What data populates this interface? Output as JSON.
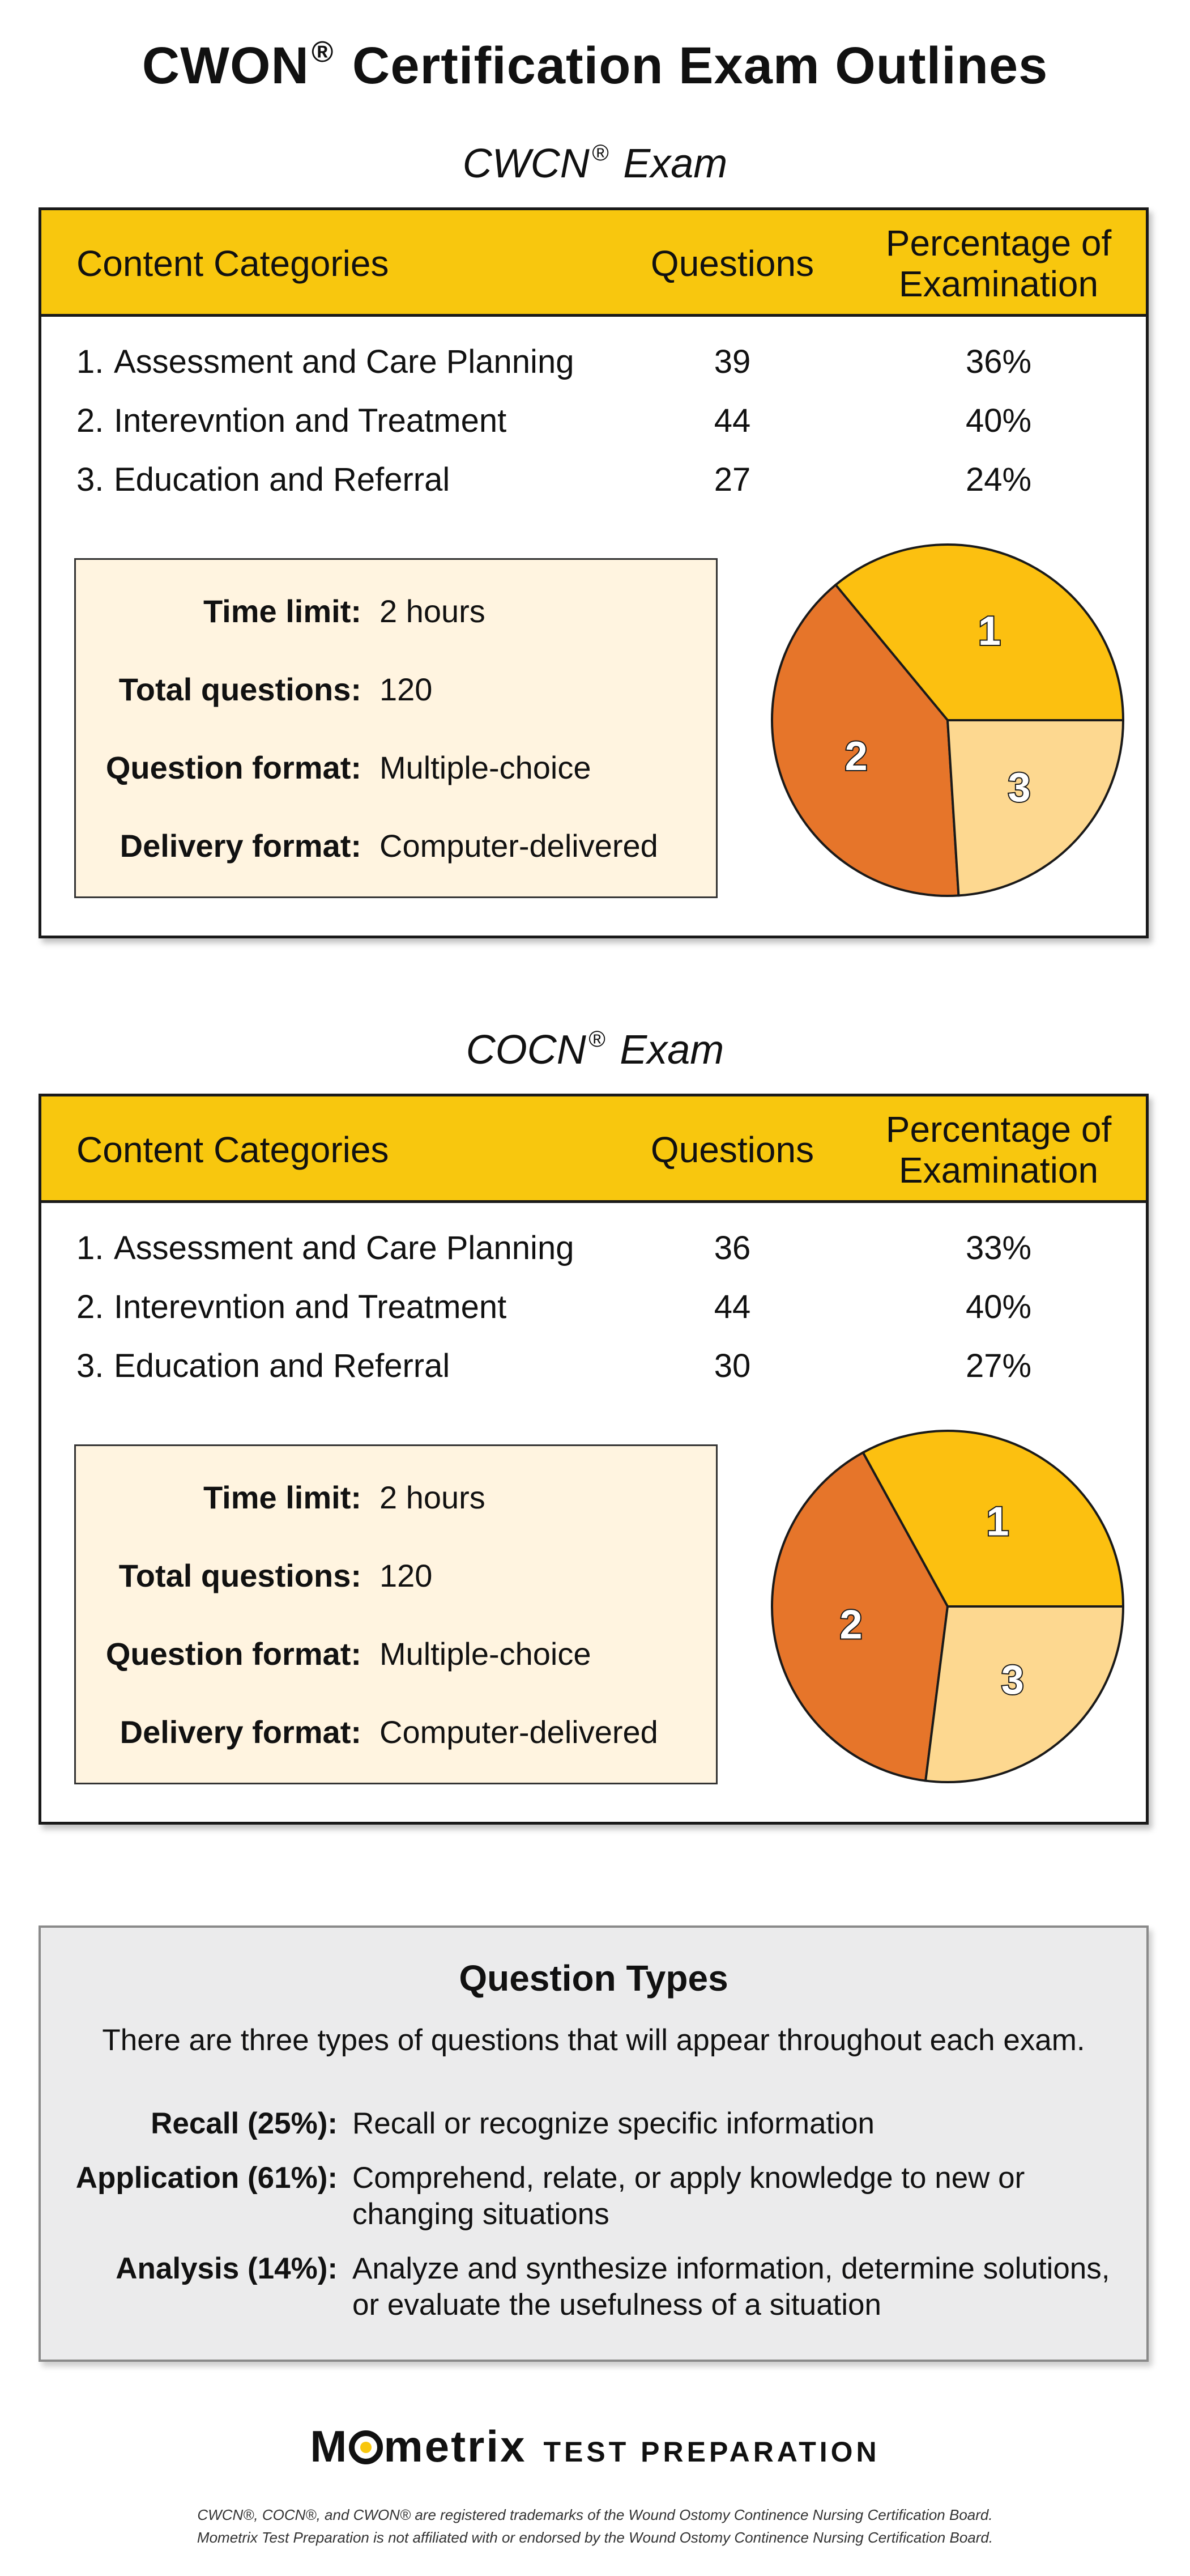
{
  "page": {
    "title_main": "CWON",
    "title_reg": "®",
    "title_rest": "Certification Exam Outlines"
  },
  "exams": [
    {
      "name": "CWCN",
      "reg": "®",
      "suffix": "Exam",
      "header": {
        "category": "Content Categories",
        "questions": "Questions",
        "percentage_line1": "Percentage of",
        "percentage_line2": "Examination"
      },
      "rows": [
        {
          "num": "1.",
          "label": "Assessment and Care Planning",
          "questions": "39",
          "percentage": "36%"
        },
        {
          "num": "2.",
          "label": "Interevntion and Treatment",
          "questions": "44",
          "percentage": "40%"
        },
        {
          "num": "3.",
          "label": "Education and Referral",
          "questions": "27",
          "percentage": "24%"
        }
      ],
      "info": [
        {
          "label": "Time limit:",
          "value": "2 hours"
        },
        {
          "label": "Total questions:",
          "value": "120"
        },
        {
          "label": "Question format:",
          "value": "Multiple-choice"
        },
        {
          "label": "Delivery format:",
          "value": "Computer-delivered"
        }
      ],
      "pie": {
        "slices": [
          {
            "label": "1",
            "value": 36
          },
          {
            "label": "2",
            "value": 40
          },
          {
            "label": "3",
            "value": 24
          }
        ]
      }
    },
    {
      "name": "COCN",
      "reg": "®",
      "suffix": "Exam",
      "header": {
        "category": "Content Categories",
        "questions": "Questions",
        "percentage_line1": "Percentage of",
        "percentage_line2": "Examination"
      },
      "rows": [
        {
          "num": "1.",
          "label": "Assessment and Care Planning",
          "questions": "36",
          "percentage": "33%"
        },
        {
          "num": "2.",
          "label": "Interevntion and Treatment",
          "questions": "44",
          "percentage": "40%"
        },
        {
          "num": "3.",
          "label": "Education and Referral",
          "questions": "30",
          "percentage": "27%"
        }
      ],
      "info": [
        {
          "label": "Time limit:",
          "value": "2 hours"
        },
        {
          "label": "Total questions:",
          "value": "120"
        },
        {
          "label": "Question format:",
          "value": "Multiple-choice"
        },
        {
          "label": "Delivery format:",
          "value": "Computer-delivered"
        }
      ],
      "pie": {
        "slices": [
          {
            "label": "1",
            "value": 33
          },
          {
            "label": "2",
            "value": 40
          },
          {
            "label": "3",
            "value": 27
          }
        ]
      }
    }
  ],
  "question_types": {
    "title": "Question Types",
    "intro": "There are three types of questions that will appear throughout each exam.",
    "items": [
      {
        "label": "Recall (25%):",
        "description": "Recall or recognize specific information"
      },
      {
        "label": "Application (61%):",
        "description": "Comprehend, relate, or apply knowledge to new or changing situations"
      },
      {
        "label": "Analysis (14%):",
        "description": "Analyze and synthesize information, determine solutions, or evaluate the usefulness of a situation"
      }
    ]
  },
  "footer": {
    "brand_m": "M",
    "brand_rest": "metrix",
    "tagline": "TEST PREPARATION",
    "note_line1": "CWCN®, COCN®, and CWON® are registered trademarks of the Wound Ostomy Continence Nursing Certification Board.",
    "note_line2": "Mometrix Test Preparation is not affiliated with or endorsed by the Wound Ostomy Continence Nursing Certification Board."
  },
  "colors": {
    "header_yellow": "#f8c70e",
    "slice_1": "#fcc010",
    "slice_2": "#e6752a",
    "slice_3": "#fdd890",
    "info_bg": "#fff4e0",
    "question_types_bg": "#ebebec"
  }
}
